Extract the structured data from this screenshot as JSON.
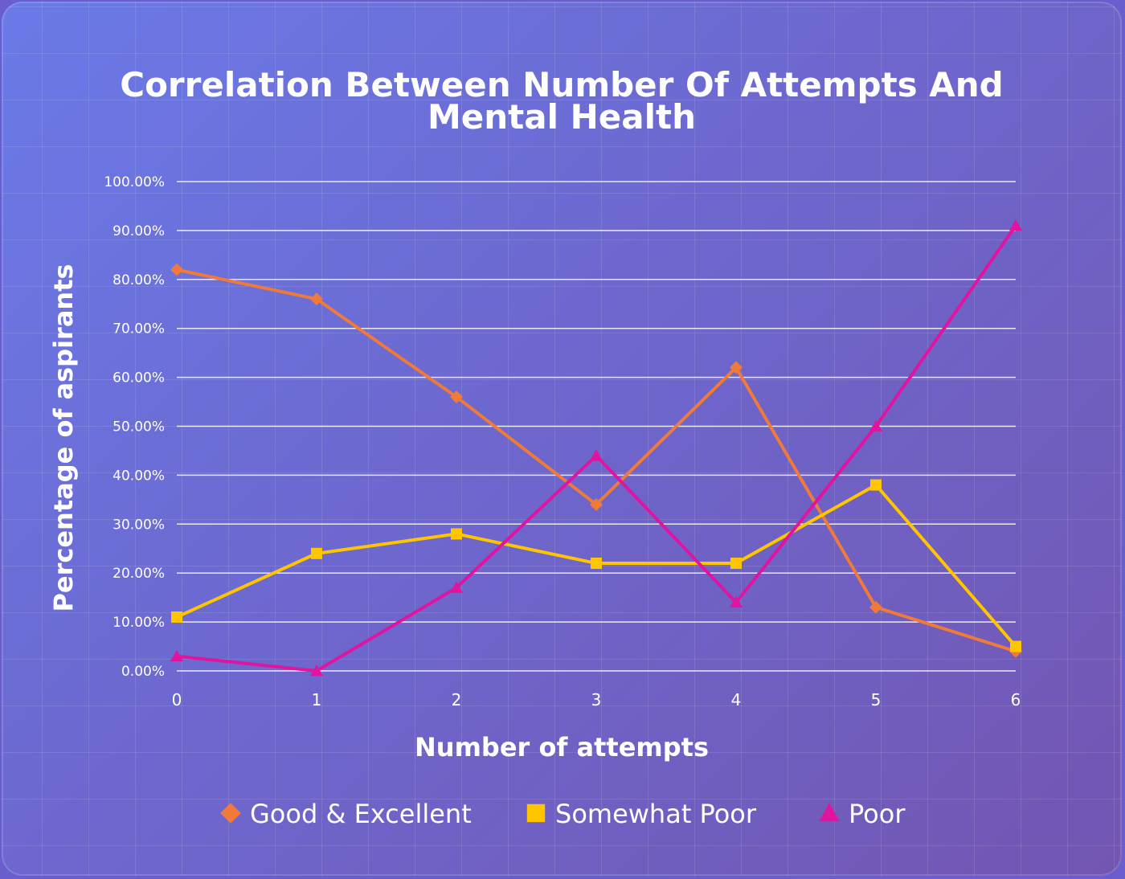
{
  "chart_data": {
    "type": "line",
    "title": "Correlation Between Number Of Attempts And Mental Health",
    "title_lines": [
      "Correlation Between Number Of Attempts And",
      "Mental Health"
    ],
    "xlabel": "Number of attempts",
    "ylabel": "Percentage of aspirants",
    "categories": [
      "0",
      "1",
      "2",
      "3",
      "4",
      "5",
      "6"
    ],
    "x": [
      0,
      1,
      2,
      3,
      4,
      5,
      6
    ],
    "ylim": [
      0,
      100
    ],
    "yticks": [
      0,
      10,
      20,
      30,
      40,
      50,
      60,
      70,
      80,
      90,
      100
    ],
    "ytick_labels": [
      "0.00%",
      "10.00%",
      "20.00%",
      "30.00%",
      "40.00%",
      "50.00%",
      "60.00%",
      "70.00%",
      "80.00%",
      "90.00%",
      "100.00%"
    ],
    "grid": true,
    "legend_position": "bottom",
    "series": [
      {
        "name": "Good & Excellent",
        "color": "#f07a3a",
        "marker": "diamond",
        "values": [
          82,
          76,
          56,
          34,
          62,
          13,
          4
        ]
      },
      {
        "name": "Somewhat Poor",
        "color": "#ffc600",
        "marker": "square",
        "values": [
          11,
          24,
          28,
          22,
          22,
          38,
          5
        ]
      },
      {
        "name": "Poor",
        "color": "#e0149e",
        "marker": "triangle",
        "values": [
          3,
          0,
          17,
          44,
          14,
          50,
          91
        ]
      }
    ]
  }
}
